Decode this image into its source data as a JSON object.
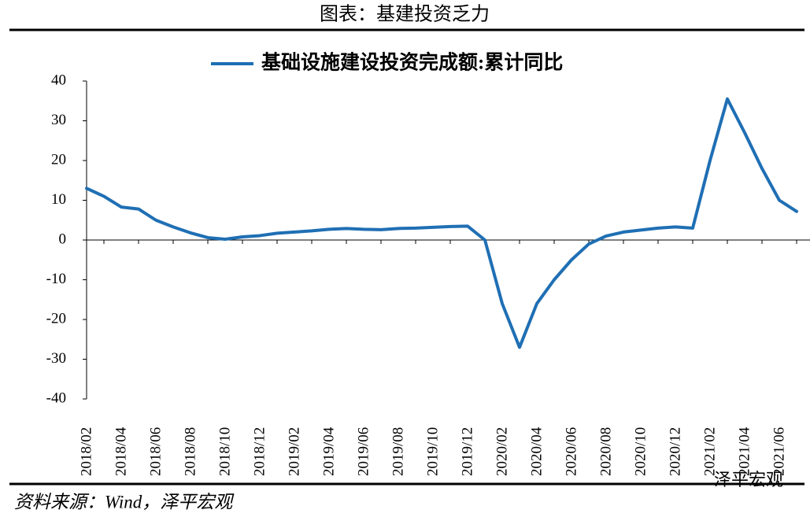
{
  "header": {
    "title": "图表：基建投资乏力"
  },
  "chart_data": {
    "type": "line",
    "categories": [
      "2018/02",
      null,
      "2018/04",
      null,
      "2018/06",
      null,
      "2018/08",
      null,
      "2018/10",
      null,
      "2018/12",
      null,
      "2019/02",
      null,
      "2019/04",
      null,
      "2019/06",
      null,
      "2019/08",
      null,
      "2019/10",
      null,
      "2019/12",
      null,
      "2020/02",
      null,
      "2020/04",
      null,
      "2020/06",
      null,
      "2020/08",
      null,
      "2020/10",
      null,
      "2020/12",
      null,
      "2021/02",
      null,
      "2021/04",
      null,
      "2021/06",
      null
    ],
    "series": [
      {
        "name": "基础设施建设投资完成额:累计同比",
        "color": "#1f6fb4",
        "values": [
          13.0,
          11.0,
          8.3,
          7.8,
          5.0,
          3.3,
          1.8,
          0.6,
          0.2,
          0.8,
          1.1,
          1.7,
          2.0,
          2.3,
          2.7,
          2.9,
          2.7,
          2.6,
          2.9,
          3.0,
          3.2,
          3.4,
          3.5,
          0.0,
          -16.0,
          -27.0,
          -16.0,
          -10.0,
          -5.0,
          -1.0,
          1.0,
          2.0,
          2.5,
          3.0,
          3.3,
          3.0,
          20.0,
          35.5,
          27.0,
          18.0,
          10.0,
          7.2
        ]
      }
    ],
    "ylim": [
      -40,
      40
    ],
    "yticks": [
      -40,
      -30,
      -20,
      -10,
      0,
      10,
      20,
      30,
      40
    ]
  },
  "footer": {
    "source": "资料来源：Wind，泽平宏观",
    "watermark": "泽平宏观"
  }
}
